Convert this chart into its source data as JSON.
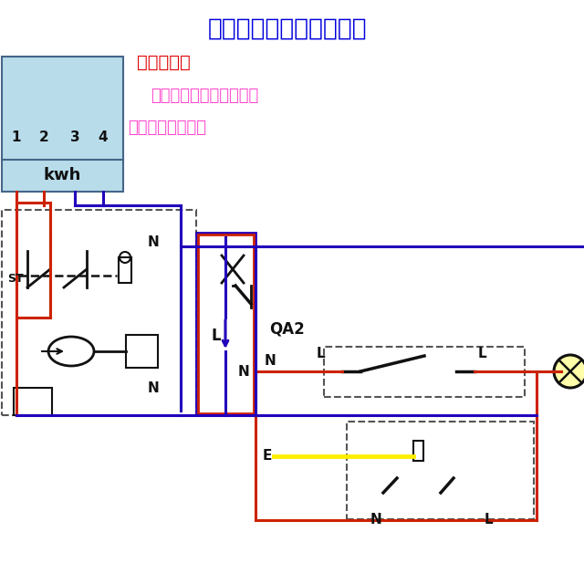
{
  "title": "照明电路一：一控一灯一",
  "sub1": "控制要求：",
  "sub2": "一个开关控制一盏灯，插",
  "sub3": "座不受开关控制。",
  "bg": "#ffffff",
  "title_color": "#0000dd",
  "sub1_color": "#dd0000",
  "sub23_color": "#ff44cc",
  "kwh_bg": "#b8dcea",
  "red": "#cc2200",
  "blue": "#2200bb",
  "black": "#111111",
  "yellow": "#ffee00",
  "gray": "#555555"
}
